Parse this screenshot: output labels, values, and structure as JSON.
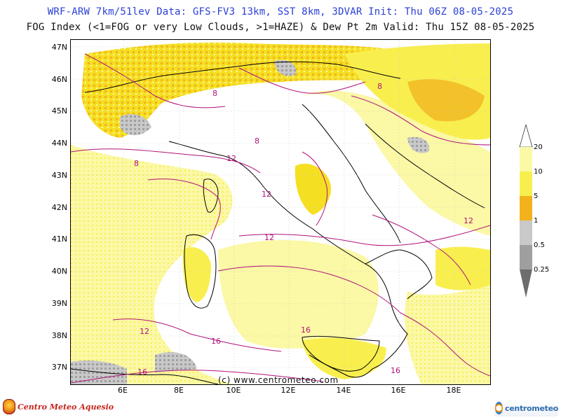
{
  "header": {
    "line1": "WRF-ARW 7km/51lev  Data: GFS-FV3 13km, SST 8km, 3DVAR  Init: Thu 06Z 08-05-2025",
    "line2": "FOG Index (<1=FOG or very Low Clouds, >1=HAZE) & Dew Pt 2m  Valid: Thu 15Z 08-05-2025"
  },
  "map": {
    "lat_labels": [
      "47N",
      "46N",
      "45N",
      "44N",
      "43N",
      "42N",
      "41N",
      "40N",
      "39N",
      "38N",
      "37N"
    ],
    "lon_labels": [
      "6E",
      "8E",
      "10E",
      "12E",
      "14E",
      "16E",
      "18E"
    ],
    "contour_labels": [
      "12",
      "12",
      "12",
      "12",
      "16",
      "16",
      "16",
      "8",
      "8",
      "8",
      "8",
      "12",
      "16"
    ],
    "watermark": "(c) www.centrometeo.com",
    "colors": {
      "yellow_light": "#fbf8a6",
      "yellow": "#f8ef4f",
      "yellow_strong": "#f5df22",
      "orange": "#f2b21c",
      "gray_light": "#c9c9c9",
      "gray": "#9f9f9f",
      "gray_dark": "#6d6d6d",
      "contour": "#b0127a",
      "border": "#000000"
    }
  },
  "legend": {
    "labels": [
      "20",
      "10",
      "5",
      "1",
      "0.5",
      "0.25"
    ]
  },
  "logos": {
    "left_text": "Centro Meteo Aquesio",
    "right_text": "centrometeo"
  }
}
